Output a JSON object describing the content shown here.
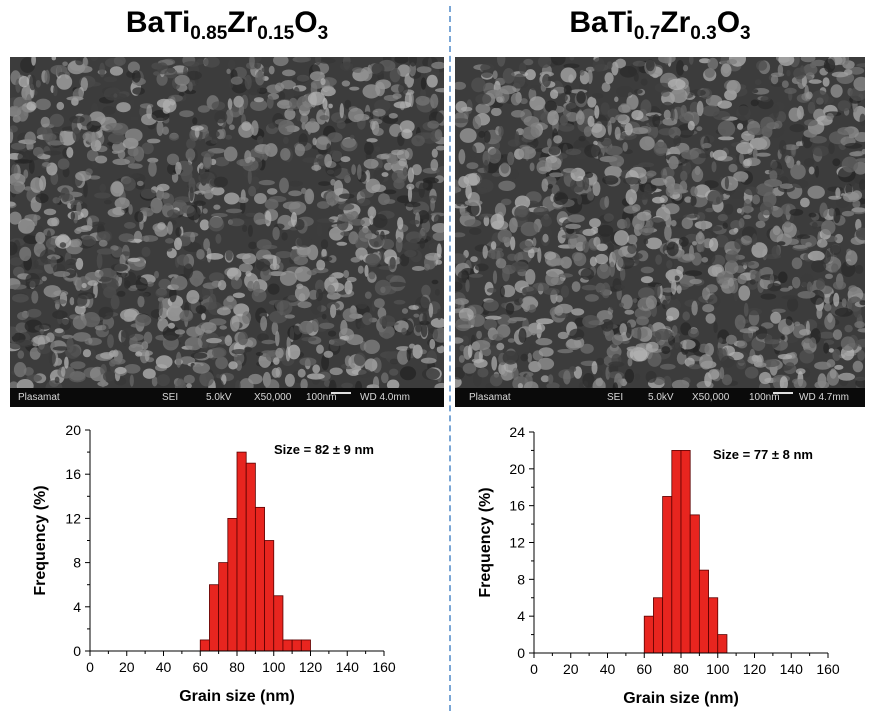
{
  "panels": {
    "left": {
      "title": {
        "base1": "BaTi",
        "sub1": "0.85",
        "base2": "Zr",
        "sub2": "0.15",
        "base3": "O",
        "sub3": "3"
      },
      "sem_info": {
        "org": "Plasamat",
        "mode": "SEI",
        "voltage": "5.0kV",
        "mag": "X50,000",
        "scale": "100nm",
        "wd": "WD 4.0mm"
      }
    },
    "right": {
      "title": {
        "base1": "BaTi",
        "sub1": "0.7",
        "base2": "Zr",
        "sub2": "0.3",
        "base3": "O",
        "sub3": "3"
      },
      "sem_info": {
        "org": "Plasamat",
        "mode": "SEI",
        "voltage": "5.0kV",
        "mag": "X50,000",
        "scale": "100nm",
        "wd": "WD 4.7mm"
      }
    }
  },
  "colors": {
    "bar_fill": "#e8251f",
    "bar_stroke": "#5a0000",
    "sem_base": "#3c3c3c",
    "divider": "#7aa6d6"
  },
  "chart_data": [
    {
      "type": "bar",
      "title": "",
      "xlabel": "Grain size (nm)",
      "ylabel": "Frequency (%)",
      "xlim": [
        0,
        160
      ],
      "ylim": [
        0,
        20
      ],
      "xticks": [
        0,
        20,
        40,
        60,
        80,
        100,
        120,
        140,
        160
      ],
      "yticks": [
        0,
        4,
        8,
        12,
        16,
        20
      ],
      "bin_width": 5,
      "x": [
        60,
        65,
        70,
        75,
        80,
        85,
        90,
        95,
        100,
        105,
        110,
        115
      ],
      "values": [
        1,
        6,
        8,
        12,
        18,
        17,
        13,
        10,
        5,
        1,
        1,
        1
      ],
      "annotation": "Size = 82 ± 9 nm",
      "grid": false
    },
    {
      "type": "bar",
      "title": "",
      "xlabel": "Grain size (nm)",
      "ylabel": "Frequency (%)",
      "xlim": [
        0,
        160
      ],
      "ylim": [
        0,
        24
      ],
      "xticks": [
        0,
        20,
        40,
        60,
        80,
        100,
        120,
        140,
        160
      ],
      "yticks": [
        0,
        4,
        8,
        12,
        16,
        20,
        24
      ],
      "bin_width": 5,
      "x": [
        60,
        65,
        70,
        75,
        80,
        85,
        90,
        95,
        100
      ],
      "values": [
        4,
        6,
        17,
        22,
        22,
        15,
        9,
        6,
        2
      ],
      "annotation": "Size = 77 ± 8 nm",
      "grid": false
    }
  ]
}
